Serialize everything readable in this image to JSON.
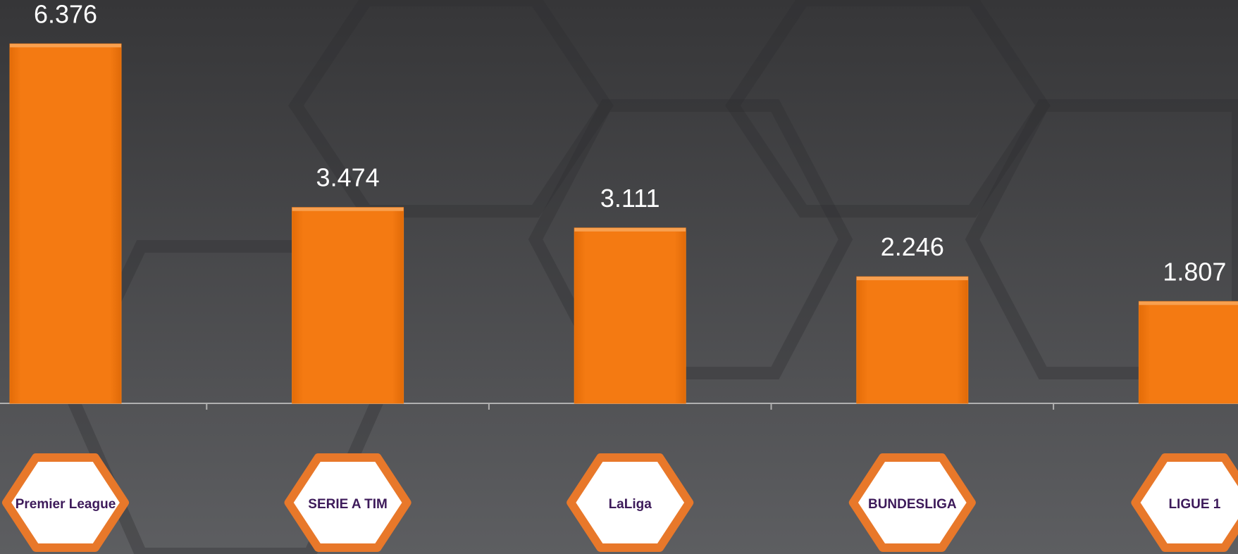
{
  "chart_data": {
    "type": "bar",
    "categories": [
      "Premier League",
      "SERIE A TIM",
      "LaLiga",
      "BUNDESLIGA",
      "LIGUE 1"
    ],
    "values": [
      6.376,
      3.474,
      3.111,
      2.246,
      1.807
    ],
    "color": "#f07810",
    "logo_border_color": "#e8782a"
  }
}
